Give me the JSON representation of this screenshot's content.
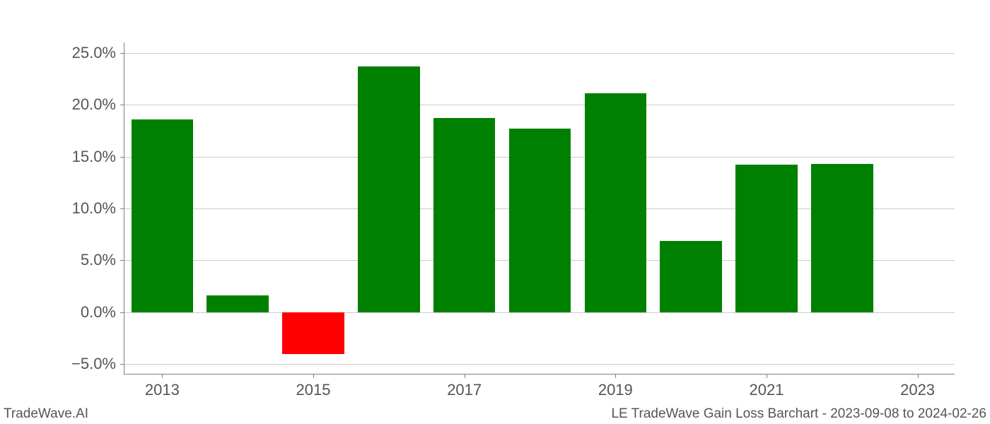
{
  "chart": {
    "type": "bar",
    "categories": [
      "2013",
      "2014",
      "2015",
      "2016",
      "2017",
      "2018",
      "2019",
      "2020",
      "2021",
      "2022"
    ],
    "values": [
      18.6,
      1.6,
      -4.0,
      23.7,
      18.7,
      17.7,
      21.1,
      6.9,
      14.2,
      14.3
    ],
    "bar_colors": [
      "#008000",
      "#008000",
      "#ff0000",
      "#008000",
      "#008000",
      "#008000",
      "#008000",
      "#008000",
      "#008000",
      "#008000"
    ],
    "bar_width": 0.82,
    "ylim": [
      -6.0,
      26.0
    ],
    "yticks": [
      -5.0,
      0.0,
      5.0,
      10.0,
      15.0,
      20.0,
      25.0
    ],
    "ytick_labels": [
      "−5.0%",
      "0.0%",
      "5.0%",
      "10.0%",
      "15.0%",
      "20.0%",
      "25.0%"
    ],
    "xtick_positions": [
      0,
      2,
      4,
      6,
      8,
      10
    ],
    "xtick_labels": [
      "2013",
      "2015",
      "2017",
      "2019",
      "2021",
      "2023"
    ],
    "x_extent": [
      -0.5,
      10.5
    ],
    "background_color": "#ffffff",
    "grid_color": "#cccccc",
    "axis_color": "#808080",
    "tick_label_color": "#555555",
    "tick_label_fontsize": 22
  },
  "footer": {
    "left": "TradeWave.AI",
    "right": "LE TradeWave Gain Loss Barchart - 2023-09-08 to 2024-02-26",
    "fontsize": 19,
    "color": "#555555"
  }
}
